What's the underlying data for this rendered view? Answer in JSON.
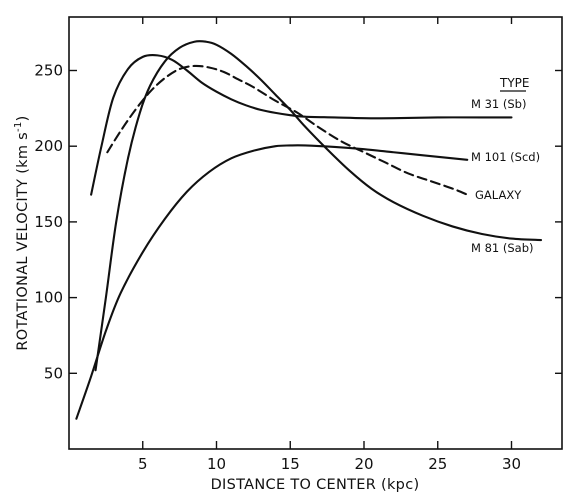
{
  "chart_data": {
    "type": "line",
    "title": "",
    "xlabel": "DISTANCE TO CENTER (kpc)",
    "ylabel": "ROTATIONAL VELOCITY (km s",
    "ylabel_unit_suffix": ")",
    "ylabel_superscript": "-1",
    "xlim": [
      0,
      33
    ],
    "ylim": [
      0,
      275
    ],
    "x_ticks": [
      5,
      10,
      15,
      20,
      25,
      30
    ],
    "y_ticks": [
      50,
      100,
      150,
      200,
      250
    ],
    "grid": false,
    "legend": {
      "title": "TYPE",
      "placement": "right"
    },
    "series": [
      {
        "name": "M 31  (Sb)",
        "style": "solid",
        "x": [
          1.5,
          2.2,
          3,
          4,
          5,
          6,
          7,
          8,
          9,
          10,
          11,
          12,
          13,
          14,
          15,
          16,
          18,
          20,
          22,
          25,
          28,
          30
        ],
        "y": [
          168,
          200,
          232,
          251,
          259,
          260,
          257,
          250,
          242,
          236,
          231,
          227,
          224,
          222,
          220.5,
          219.5,
          219,
          218.5,
          218.5,
          219,
          219,
          219
        ]
      },
      {
        "name": "M 101  (Scd)",
        "style": "solid",
        "x": [
          0.5,
          1.5,
          2.5,
          3.5,
          5,
          6.5,
          8,
          9.5,
          11,
          12.5,
          14,
          15,
          16,
          18,
          20,
          22,
          24,
          27
        ],
        "y": [
          20,
          48,
          78,
          103,
          130,
          152,
          170,
          183,
          192,
          197,
          200,
          200.5,
          200.5,
          199.5,
          198,
          196,
          194,
          191
        ]
      },
      {
        "name": "GALAXY",
        "style": "dashed",
        "x": [
          2.6,
          3.5,
          4.5,
          5.5,
          6.5,
          7.5,
          8.5,
          9.5,
          10.5,
          11.5,
          12.5,
          14,
          15.5,
          17,
          18.5,
          20,
          21.5,
          23,
          24.5,
          26,
          27
        ],
        "y": [
          196,
          210,
          224,
          236,
          245,
          251,
          253,
          252,
          249,
          244,
          239,
          230,
          222,
          212,
          203,
          196,
          189,
          182,
          177,
          172,
          168
        ]
      },
      {
        "name": "M 81  (Sab)",
        "style": "solid",
        "x": [
          1.8,
          2.5,
          3.2,
          4,
          4.8,
          5.5,
          6.5,
          7.5,
          8.5,
          9.3,
          10,
          11,
          12,
          13,
          14,
          15,
          16,
          17.5,
          19,
          20.5,
          22,
          24,
          26,
          28,
          30,
          32
        ],
        "y": [
          52,
          100,
          150,
          192,
          222,
          240,
          256,
          265,
          269,
          269,
          267,
          261,
          253,
          244,
          234,
          224,
          213,
          198,
          184,
          172,
          163,
          154,
          147,
          142,
          139,
          138
        ]
      }
    ],
    "curve_labels": {
      "m31": "M 31  (Sb)",
      "m101": "M 101  (Scd)",
      "galaxy": "GALAXY",
      "m81": "M 81  (Sab)"
    }
  }
}
